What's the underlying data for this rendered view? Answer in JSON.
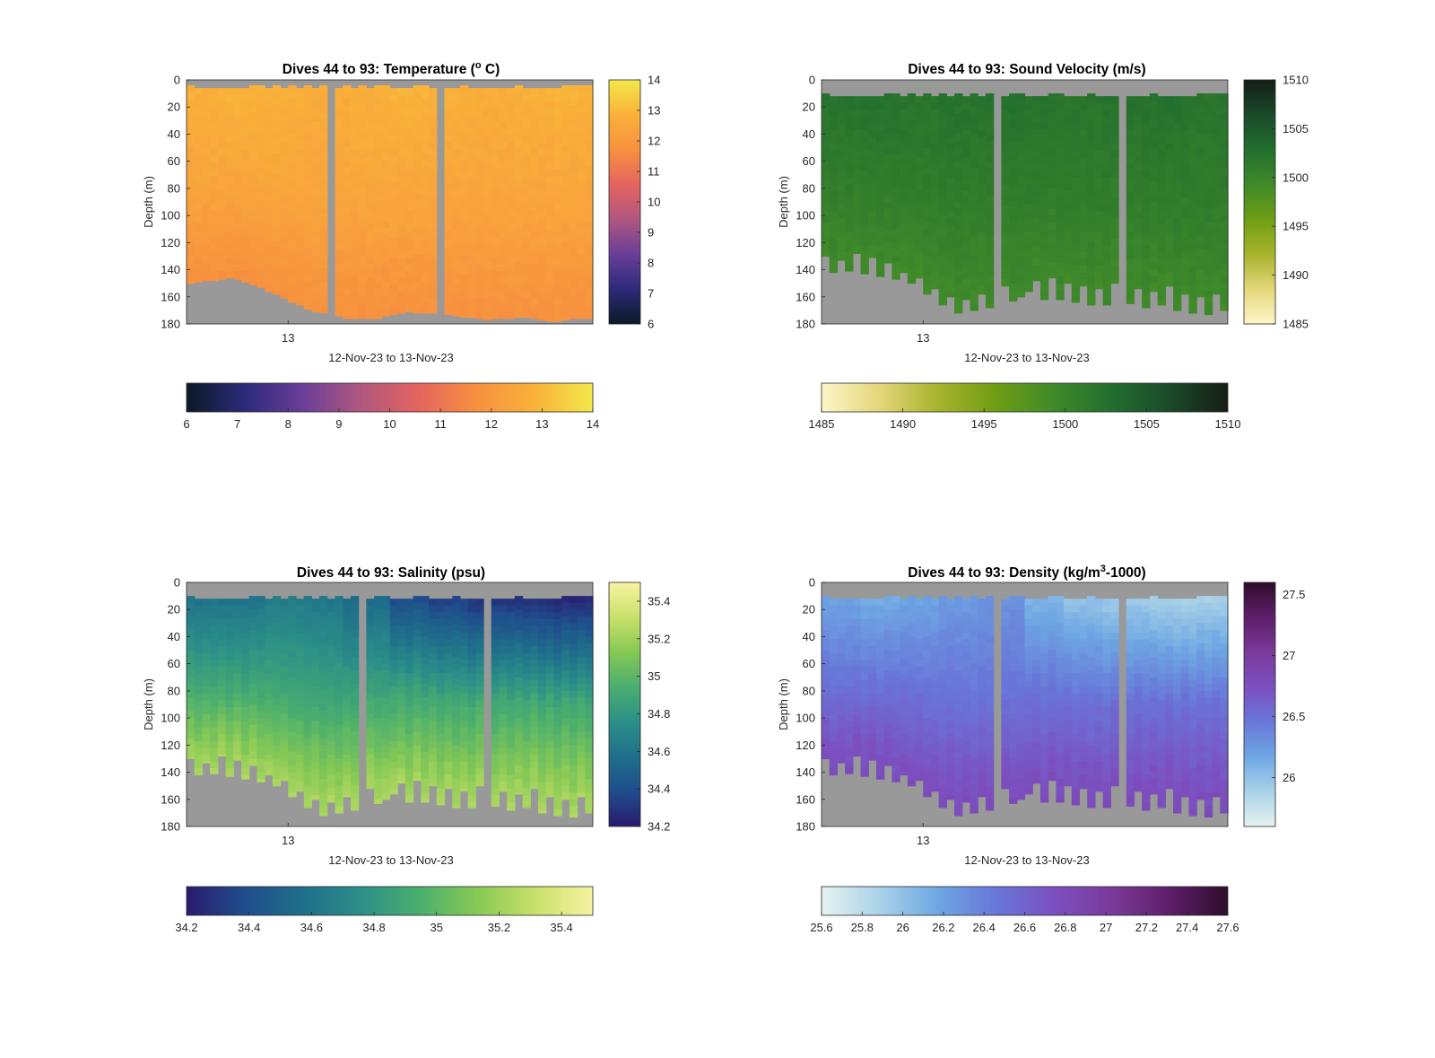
{
  "figure": {
    "background": "#ffffff",
    "no_data_color": "#999999"
  },
  "chart_data": [
    {
      "type": "heatmap",
      "title": {
        "prefix": "Dives 44 to 93: Temperature (",
        "sup": "o",
        "suffix": " C)"
      },
      "xlabel": "12-Nov-23 to 13-Nov-23",
      "ylabel": "Depth (m)",
      "x_tick_labels": [
        "13"
      ],
      "y_ticks": [
        0,
        20,
        40,
        60,
        80,
        100,
        120,
        140,
        160,
        180
      ],
      "ylim": [
        0,
        180
      ],
      "y_reversed": true,
      "dives": {
        "first": 44,
        "last": 93
      },
      "gap_after_profile": [
        18,
        31
      ],
      "top_missing_depth_m": 4,
      "bottom_depth_m": [
        150,
        149,
        148,
        148,
        147,
        146,
        147,
        149,
        151,
        153,
        156,
        158,
        161,
        164,
        166,
        169,
        171,
        172,
        174,
        176,
        176,
        176,
        176,
        176,
        174,
        173,
        172,
        171,
        172,
        172,
        172,
        173,
        174,
        175,
        175,
        176,
        177,
        176,
        176,
        176,
        175,
        175,
        176,
        177,
        178,
        178,
        177,
        176,
        176,
        176
      ],
      "colormap": [
        "#0a1a26",
        "#2c2a7a",
        "#6a3e98",
        "#b0577f",
        "#e5645e",
        "#f7913f",
        "#f9b13a",
        "#f3e94a"
      ],
      "clim": [
        6,
        14
      ],
      "colorbar": {
        "ticks": [
          6,
          7,
          8,
          9,
          10,
          11,
          12,
          13,
          14
        ],
        "tick_labels": [
          "6",
          "7",
          "8",
          "9",
          "10",
          "11",
          "12",
          "13",
          "14"
        ]
      },
      "profile_model": {
        "surface": [
          12.8,
          12.9,
          12.8,
          12.7,
          12.8,
          12.9,
          12.8,
          12.7,
          12.8,
          12.9
        ],
        "bottom": 11.7,
        "mid": 12.4
      }
    },
    {
      "type": "heatmap",
      "title": {
        "prefix": "Dives 44 to 93: Sound Velocity (m/s)",
        "sup": "",
        "suffix": ""
      },
      "xlabel": "12-Nov-23 to 13-Nov-23",
      "ylabel": "Depth (m)",
      "x_tick_labels": [
        "13"
      ],
      "y_ticks": [
        0,
        20,
        40,
        60,
        80,
        100,
        120,
        140,
        160,
        180
      ],
      "ylim": [
        0,
        180
      ],
      "y_reversed": true,
      "dives": {
        "first": 44,
        "last": 93
      },
      "gap_after_profile": [
        22,
        37
      ],
      "top_missing_depth_m": 10,
      "bottom_depth_m": [
        130,
        142,
        133,
        141,
        128,
        143,
        131,
        145,
        135,
        147,
        142,
        150,
        146,
        158,
        154,
        166,
        160,
        172,
        162,
        170,
        158,
        168,
        152,
        163,
        160,
        156,
        148,
        162,
        146,
        162,
        150,
        164,
        152,
        166,
        154,
        166,
        150,
        165,
        154,
        168,
        156,
        166,
        152,
        170,
        158,
        172,
        160,
        173,
        158,
        170
      ],
      "colormap": [
        "#fdf5c8",
        "#e3d67a",
        "#a8b32c",
        "#6f9d14",
        "#3f8a2a",
        "#226e2e",
        "#1b4a2a",
        "#151d16"
      ],
      "clim": [
        1485,
        1510
      ],
      "colorbar": {
        "ticks": [
          1485,
          1490,
          1495,
          1500,
          1505,
          1510
        ],
        "tick_labels": [
          "1485",
          "1490",
          "1495",
          "1500",
          "1505",
          "1510"
        ]
      },
      "profile_model": {
        "surface": [
          1502.2,
          1502.4,
          1502.1,
          1502.3,
          1502.5,
          1502.2,
          1502.0,
          1502.3,
          1502.4,
          1502.1
        ],
        "bottom": 1499.2,
        "mid": 1501.0
      }
    },
    {
      "type": "heatmap",
      "title": {
        "prefix": "Dives 44 to 93: Salinity (psu)",
        "sup": "",
        "suffix": ""
      },
      "xlabel": "12-Nov-23 to 13-Nov-23",
      "ylabel": "Depth (m)",
      "x_tick_labels": [
        "13"
      ],
      "y_ticks": [
        0,
        20,
        40,
        60,
        80,
        100,
        120,
        140,
        160,
        180
      ],
      "ylim": [
        0,
        180
      ],
      "y_reversed": true,
      "dives": {
        "first": 44,
        "last": 93
      },
      "gap_after_profile": [
        22,
        37
      ],
      "top_missing_depth_m": 10,
      "bottom_depth_m": [
        130,
        142,
        133,
        141,
        128,
        143,
        131,
        145,
        135,
        147,
        142,
        150,
        146,
        158,
        154,
        166,
        160,
        172,
        162,
        170,
        158,
        168,
        152,
        163,
        160,
        156,
        148,
        162,
        146,
        162,
        150,
        164,
        152,
        166,
        154,
        166,
        150,
        165,
        154,
        168,
        156,
        166,
        152,
        170,
        158,
        172,
        160,
        173,
        158,
        170
      ],
      "colormap": [
        "#2a1a6e",
        "#1f4d8c",
        "#1f6f8a",
        "#2b8f88",
        "#4aae6e",
        "#86c955",
        "#c9e06a",
        "#f7f3a2"
      ],
      "clim": [
        34.2,
        35.5
      ],
      "colorbar": {
        "ticks": [
          34.2,
          34.4,
          34.6,
          34.8,
          35,
          35.2,
          35.4
        ],
        "tick_labels": [
          "34.2",
          "34.4",
          "34.6",
          "34.8",
          "35",
          "35.2",
          "35.4"
        ]
      },
      "profile_model": {
        "surface": [
          34.6,
          34.6,
          34.65,
          34.62,
          34.55,
          34.4,
          34.35,
          34.3,
          34.28,
          34.25
        ],
        "bottom": 35.25,
        "mid": 34.9
      }
    },
    {
      "type": "heatmap",
      "title": {
        "prefix": "Dives 44 to 93: Density (kg/m",
        "sup": "3",
        "suffix": "-1000)"
      },
      "xlabel": "12-Nov-23 to 13-Nov-23",
      "ylabel": "Depth (m)",
      "x_tick_labels": [
        "13"
      ],
      "y_ticks": [
        0,
        20,
        40,
        60,
        80,
        100,
        120,
        140,
        160,
        180
      ],
      "ylim": [
        0,
        180
      ],
      "y_reversed": true,
      "dives": {
        "first": 44,
        "last": 93
      },
      "gap_after_profile": [
        22,
        37
      ],
      "top_missing_depth_m": 10,
      "bottom_depth_m": [
        130,
        142,
        133,
        141,
        128,
        143,
        131,
        145,
        135,
        147,
        142,
        150,
        146,
        158,
        154,
        166,
        160,
        172,
        162,
        170,
        158,
        168,
        152,
        163,
        160,
        156,
        148,
        162,
        146,
        162,
        150,
        164,
        152,
        166,
        154,
        166,
        150,
        165,
        154,
        168,
        156,
        166,
        152,
        170,
        158,
        172,
        160,
        173,
        158,
        170
      ],
      "colormap": [
        "#e6f2f0",
        "#a9d2e8",
        "#6ea7e3",
        "#6877d8",
        "#7c4fc0",
        "#7a3a9a",
        "#5e1e6a",
        "#2e0d2a"
      ],
      "clim": [
        25.6,
        27.6
      ],
      "colorbar_side": {
        "ticks": [
          26,
          26.5,
          27,
          27.5
        ],
        "tick_labels": [
          "26",
          "26.5",
          "27",
          "27.5"
        ]
      },
      "colorbar": {
        "ticks": [
          25.6,
          25.8,
          26,
          26.2,
          26.4,
          26.6,
          26.8,
          27,
          27.2,
          27.4,
          27.6
        ],
        "tick_labels": [
          "25.6",
          "25.8",
          "26",
          "26.2",
          "26.4",
          "26.6",
          "26.8",
          "27",
          "27.2",
          "27.4",
          "27.6"
        ]
      },
      "profile_model": {
        "surface": [
          26.2,
          26.15,
          26.2,
          26.25,
          26.3,
          26.1,
          26.0,
          25.95,
          25.9,
          25.9
        ],
        "bottom": 26.8,
        "mid": 26.5
      }
    }
  ]
}
